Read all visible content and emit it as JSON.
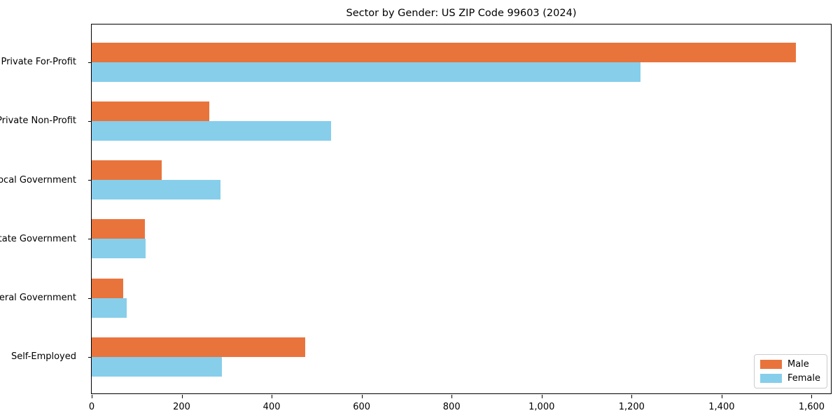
{
  "chart_data": {
    "type": "bar",
    "orientation": "horizontal",
    "title": "Sector by Gender: US ZIP Code 99603 (2024)",
    "categories": [
      "Private For-Profit",
      "Private Non-Profit",
      "Local Government",
      "State Government",
      "Federal Government",
      "Self-Employed"
    ],
    "series": [
      {
        "name": "Male",
        "color": "#E8743C",
        "values": [
          1565,
          262,
          155,
          118,
          70,
          475
        ]
      },
      {
        "name": "Female",
        "color": "#87CEEB",
        "values": [
          1220,
          532,
          286,
          120,
          77,
          290
        ]
      }
    ],
    "xlabel": "",
    "ylabel": "",
    "xlim": [
      0,
      1646
    ],
    "xticks": [
      0,
      200,
      400,
      600,
      800,
      1000,
      1200,
      1400,
      1600
    ],
    "xtick_labels": [
      "0",
      "200",
      "400",
      "600",
      "800",
      "1,000",
      "1,200",
      "1,400",
      "1,600"
    ],
    "grid": false,
    "legend": {
      "position": "lower right"
    },
    "colors": {
      "male": "#E8743C",
      "female": "#87CEEB",
      "axis": "#000000",
      "legend_border": "#cccccc"
    }
  }
}
